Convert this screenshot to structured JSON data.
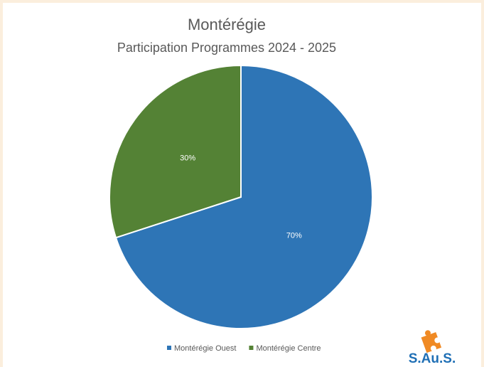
{
  "chart_data": {
    "type": "pie",
    "title": "Montérégie",
    "subtitle": "Participation Programmes 2024 - 2025",
    "categories": [
      "Montérégie Ouest",
      "Montérégie Centre"
    ],
    "values": [
      70,
      30
    ],
    "value_labels": [
      "70%",
      "30%"
    ],
    "colors": [
      "#2e75b6",
      "#548235"
    ],
    "legend": "bottom"
  },
  "logo": {
    "text": "S.Au.S."
  }
}
